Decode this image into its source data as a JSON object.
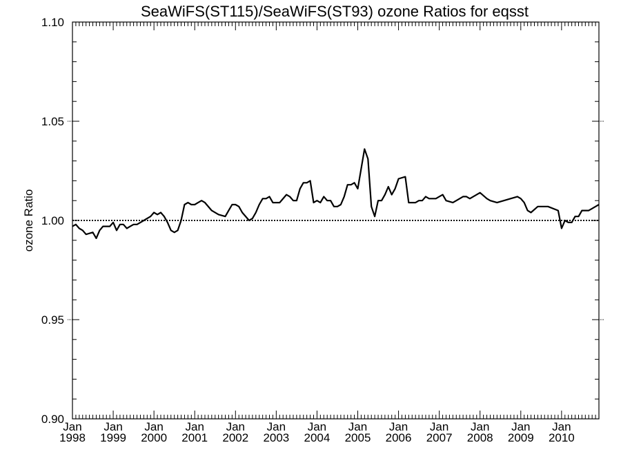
{
  "chart_data": {
    "type": "line",
    "title": "SeaWiFS(ST115)/SeaWiFS(ST93)  ozone Ratios for eqsst",
    "xlabel": "",
    "ylabel": "ozone Ratio",
    "ylim": [
      0.9,
      1.1
    ],
    "xlim": [
      "1998-01",
      "2010-12"
    ],
    "y_ticks": [
      "0.90",
      "0.95",
      "1.00",
      "1.05",
      "1.10"
    ],
    "x_ticks": [
      {
        "month": "Jan",
        "year": "1998"
      },
      {
        "month": "Jan",
        "year": "1999"
      },
      {
        "month": "Jan",
        "year": "2000"
      },
      {
        "month": "Jan",
        "year": "2001"
      },
      {
        "month": "Jan",
        "year": "2002"
      },
      {
        "month": "Jan",
        "year": "2003"
      },
      {
        "month": "Jan",
        "year": "2004"
      },
      {
        "month": "Jan",
        "year": "2005"
      },
      {
        "month": "Jan",
        "year": "2006"
      },
      {
        "month": "Jan",
        "year": "2007"
      },
      {
        "month": "Jan",
        "year": "2008"
      },
      {
        "month": "Jan",
        "year": "2009"
      },
      {
        "month": "Jan",
        "year": "2010"
      }
    ],
    "reference_line": {
      "y": 1.0,
      "style": "dotted"
    },
    "grid": false,
    "series": [
      {
        "x": [
          "1998-01",
          "1998-02",
          "1998-03",
          "1998-04",
          "1998-05",
          "1998-07",
          "1998-08",
          "1998-09",
          "1998-10",
          "1998-11",
          "1998-12",
          "1999-01",
          "1999-02",
          "1999-03",
          "1999-04",
          "1999-05",
          "1999-06",
          "1999-07",
          "1999-08",
          "1999-09",
          "1999-10",
          "1999-11",
          "1999-12",
          "2000-01",
          "2000-02",
          "2000-03",
          "2000-04",
          "2000-05",
          "2000-06",
          "2000-07",
          "2000-08",
          "2000-09",
          "2000-10",
          "2000-11",
          "2000-12",
          "2001-01",
          "2001-02",
          "2001-03",
          "2001-04",
          "2001-06",
          "2001-08",
          "2001-10",
          "2001-11",
          "2001-12",
          "2002-01",
          "2002-02",
          "2002-03",
          "2002-05",
          "2002-06",
          "2002-07",
          "2002-08",
          "2002-09",
          "2002-10",
          "2002-11",
          "2002-12",
          "2003-02",
          "2003-04",
          "2003-05",
          "2003-06",
          "2003-07",
          "2003-08",
          "2003-09",
          "2003-10",
          "2003-11",
          "2003-12",
          "2004-01",
          "2004-02",
          "2004-03",
          "2004-04",
          "2004-05",
          "2004-06",
          "2004-07",
          "2004-08",
          "2004-09",
          "2004-10",
          "2004-11",
          "2004-12",
          "2005-01",
          "2005-03",
          "2005-04",
          "2005-05",
          "2005-06",
          "2005-07",
          "2005-08",
          "2005-09",
          "2005-10",
          "2005-11",
          "2005-12",
          "2006-01",
          "2006-03",
          "2006-04",
          "2006-05",
          "2006-06",
          "2006-07",
          "2006-08",
          "2006-09",
          "2006-10",
          "2006-11",
          "2006-12",
          "2007-01",
          "2007-02",
          "2007-03",
          "2007-05",
          "2007-06",
          "2007-07",
          "2007-08",
          "2007-09",
          "2007-10",
          "2007-12",
          "2008-01",
          "2008-03",
          "2008-04",
          "2008-06",
          "2008-08",
          "2008-10",
          "2008-12",
          "2009-01",
          "2009-02",
          "2009-03",
          "2009-04",
          "2009-06",
          "2009-09",
          "2009-12",
          "2010-01",
          "2010-02",
          "2010-03",
          "2010-04",
          "2010-05",
          "2010-06",
          "2010-07",
          "2010-08",
          "2010-09",
          "2010-10",
          "2010-11",
          "2010-12"
        ],
        "values": [
          0.997,
          0.998,
          0.996,
          0.995,
          0.993,
          0.994,
          0.991,
          0.995,
          0.997,
          0.997,
          0.997,
          0.999,
          0.995,
          0.998,
          0.998,
          0.996,
          0.997,
          0.998,
          0.998,
          0.999,
          1.0,
          1.001,
          1.002,
          1.004,
          1.003,
          1.004,
          1.002,
          0.999,
          0.995,
          0.994,
          0.995,
          1.0,
          1.008,
          1.009,
          1.008,
          1.008,
          1.009,
          1.01,
          1.009,
          1.005,
          1.003,
          1.002,
          1.005,
          1.008,
          1.008,
          1.007,
          1.004,
          1.0,
          1.001,
          1.004,
          1.008,
          1.011,
          1.011,
          1.012,
          1.009,
          1.009,
          1.013,
          1.012,
          1.01,
          1.01,
          1.016,
          1.019,
          1.019,
          1.02,
          1.009,
          1.01,
          1.009,
          1.012,
          1.01,
          1.01,
          1.007,
          1.007,
          1.008,
          1.012,
          1.018,
          1.018,
          1.019,
          1.016,
          1.036,
          1.031,
          1.007,
          1.002,
          1.01,
          1.01,
          1.013,
          1.017,
          1.013,
          1.016,
          1.021,
          1.022,
          1.009,
          1.009,
          1.009,
          1.01,
          1.01,
          1.012,
          1.011,
          1.011,
          1.011,
          1.012,
          1.013,
          1.01,
          1.009,
          1.01,
          1.011,
          1.012,
          1.012,
          1.011,
          1.013,
          1.014,
          1.011,
          1.01,
          1.009,
          1.01,
          1.011,
          1.012,
          1.011,
          1.009,
          1.005,
          1.004,
          1.007,
          1.007,
          1.005,
          0.996,
          1.0,
          0.999,
          0.999,
          1.002,
          1.002,
          1.005,
          1.005,
          1.005,
          1.006,
          1.007,
          1.008
        ]
      }
    ]
  }
}
